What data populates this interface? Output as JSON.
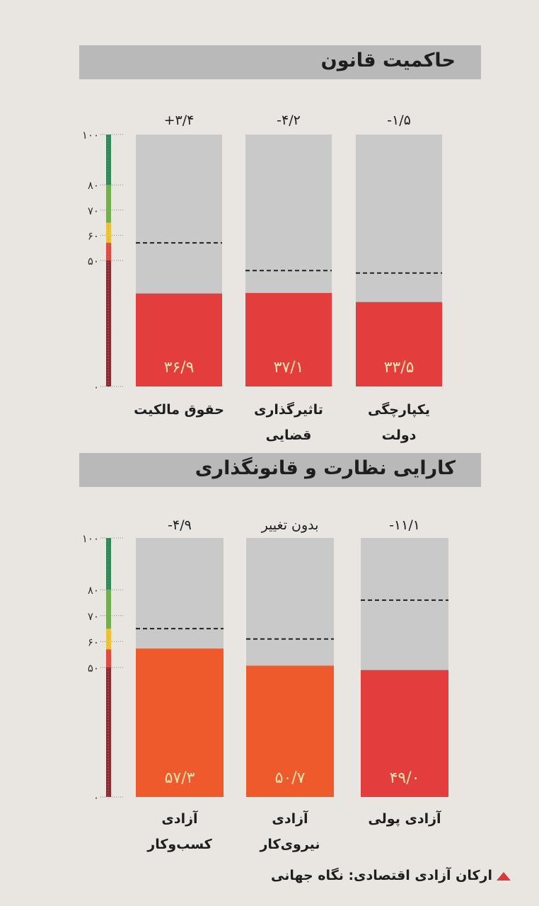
{
  "source_label": "ارکان آزادی اقتصادی: نگاه جهانی",
  "colors": {
    "bar_top": "#c9c9c9",
    "red_fill": "#e43d3d",
    "orange_fill": "#ef5a2c",
    "scale_dark_red": "#8c2a2f",
    "scale_red": "#e4473d",
    "scale_yellow": "#f1c232",
    "scale_light_green": "#6fb04b",
    "scale_green": "#2d8a55"
  },
  "chart_data": [
    {
      "type": "bar",
      "title": "حاکمیت قانون",
      "ylim": [
        0,
        100
      ],
      "y_ticks": [
        "۱۰۰",
        "۸۰",
        "۷۰",
        "۶۰",
        "۵۰",
        "۰"
      ],
      "categories": [
        [
          "حقوق مالکیت"
        ],
        [
          "تاثیرگذاری",
          "قضایی"
        ],
        [
          "یکپارچگی",
          "دولت"
        ]
      ],
      "values": [
        36.9,
        37.1,
        33.5
      ],
      "value_labels": [
        "۳۶/۹",
        "۳۷/۱",
        "۳۳/۵"
      ],
      "change_labels": [
        "+۳/۴",
        "-۴/۲",
        "-۱/۵"
      ],
      "reference_values": [
        57,
        46,
        45
      ],
      "fill": "red"
    },
    {
      "type": "bar",
      "title": "کارایی نظارت و قانونگذاری",
      "ylim": [
        0,
        100
      ],
      "y_ticks": [
        "۱۰۰",
        "۸۰",
        "۷۰",
        "۶۰",
        "۵۰",
        "۰"
      ],
      "categories": [
        [
          "آزادی",
          "کسب‌وکار"
        ],
        [
          "آزادی",
          "نیروی‌کار"
        ],
        [
          "آزادی پولی"
        ]
      ],
      "values": [
        57.3,
        50.7,
        49.0
      ],
      "value_labels": [
        "۵۷/۳",
        "۵۰/۷",
        "۴۹/۰"
      ],
      "change_labels": [
        "-۴/۹",
        "بدون تغییر",
        "-۱۱/۱"
      ],
      "reference_values": [
        65,
        61,
        76
      ],
      "fill": "orange_red"
    }
  ]
}
